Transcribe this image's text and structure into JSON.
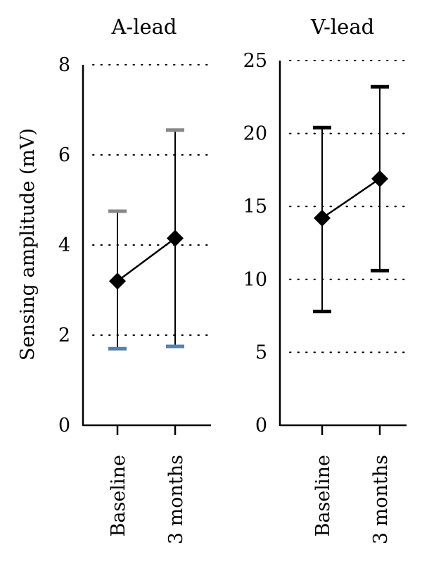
{
  "ylabel": "Sensing amplitude (mV)",
  "chart_data": [
    {
      "type": "line",
      "title": "A-lead",
      "categories": [
        "Baseline",
        "3 months"
      ],
      "yticks": [
        "0",
        "2",
        "4",
        "6",
        "8"
      ],
      "ylim": [
        0,
        8
      ],
      "grid": "horizontal-dotted",
      "series": [
        {
          "values": [
            3.2,
            4.15
          ],
          "error_low": [
            1.7,
            1.75
          ],
          "error_high": [
            4.75,
            6.55
          ],
          "cap_colors_high": [
            "#888888",
            "#888888"
          ],
          "cap_colors_low": [
            "#5b7fa6",
            "#5b7fa6"
          ]
        }
      ]
    },
    {
      "type": "line",
      "title": "V-lead",
      "categories": [
        "Baseline",
        "3 months"
      ],
      "yticks": [
        "0",
        "5",
        "10",
        "15",
        "20",
        "25"
      ],
      "ylim": [
        0,
        25
      ],
      "grid": "horizontal-dotted",
      "series": [
        {
          "values": [
            14.2,
            16.9
          ],
          "error_low": [
            7.8,
            10.6
          ],
          "error_high": [
            20.4,
            23.2
          ],
          "cap_colors_high": [
            "#000000",
            "#000000"
          ],
          "cap_colors_low": [
            "#000000",
            "#000000"
          ]
        }
      ]
    }
  ]
}
